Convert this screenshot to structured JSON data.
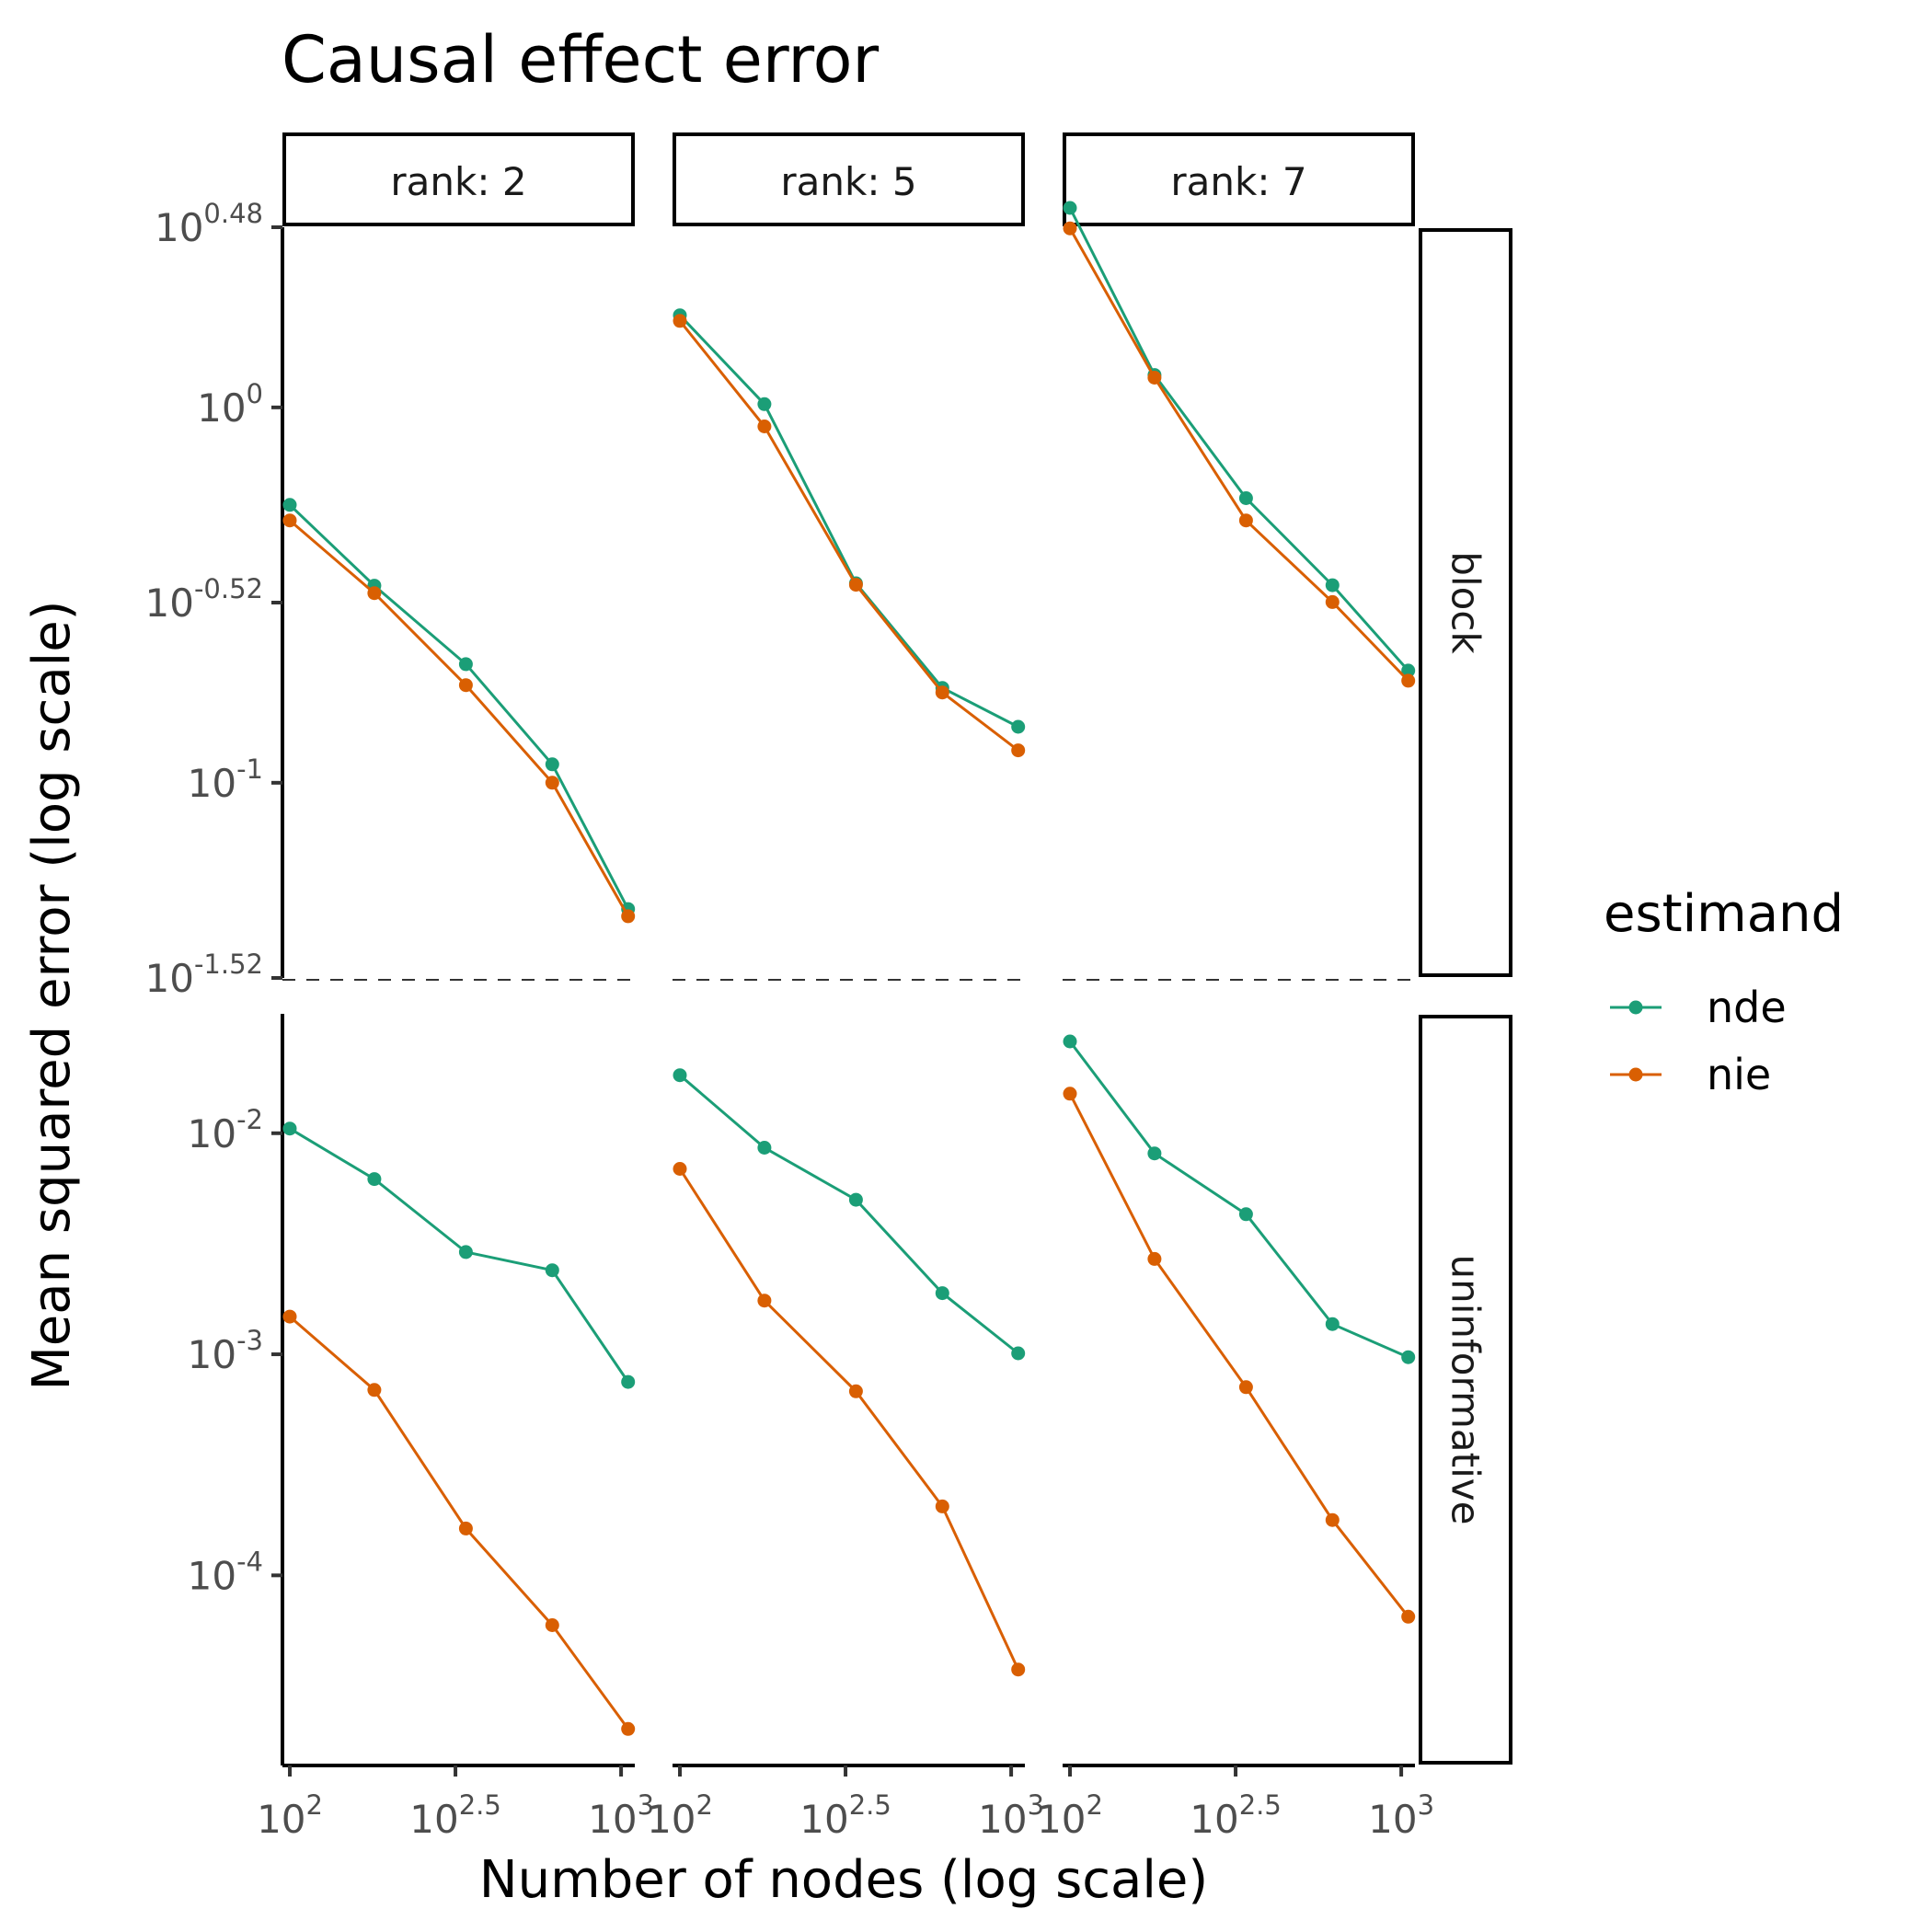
{
  "title": "Causal effect error",
  "x_axis_title": "Number of nodes (log scale)",
  "y_axis_title": "Mean squared error (log scale)",
  "legend": {
    "title": "estimand",
    "items": [
      {
        "label": "nde",
        "color": "#1B9E77"
      },
      {
        "label": "nie",
        "color": "#D95F02"
      }
    ]
  },
  "chart_data": {
    "type": "line",
    "x_scale": "log10",
    "y_scale": "log10",
    "facet_columns": [
      "rank: 2",
      "rank: 5",
      "rank: 7"
    ],
    "facet_rows": [
      "block",
      "uninformative"
    ],
    "x_ticks": [
      {
        "base": "10",
        "exp": "2",
        "value": 100
      },
      {
        "base": "10",
        "exp": "2.5",
        "value": 316.23
      },
      {
        "base": "10",
        "exp": "3",
        "value": 1000
      }
    ],
    "xlim": [
      95,
      1100
    ],
    "x": [
      100,
      180,
      340,
      620,
      1050
    ],
    "rows": [
      {
        "name": "block",
        "ylim_log10": [
          -1.52,
          0.48
        ],
        "y_ticks": [
          {
            "base": "10",
            "exp": "0.48",
            "log10": 0.48
          },
          {
            "base": "10",
            "exp": "0",
            "log10": 0
          },
          {
            "base": "10",
            "exp": "-0.52",
            "log10": -0.52
          },
          {
            "base": "10",
            "exp": "-1",
            "log10": -1
          },
          {
            "base": "10",
            "exp": "-1.52",
            "log10": -1.52
          }
        ],
        "panels": [
          {
            "label": "rank: 2",
            "series": [
              {
                "name": "nde",
                "values": [
                  0.55,
                  0.335,
                  0.207,
                  0.112,
                  0.0461
                ]
              },
              {
                "name": "nie",
                "values": [
                  0.5,
                  0.32,
                  0.182,
                  0.1,
                  0.0441
                ]
              }
            ]
          },
          {
            "label": "rank: 5",
            "series": [
              {
                "name": "nde",
                "values": [
                  1.76,
                  1.02,
                  0.34,
                  0.179,
                  0.141
                ]
              },
              {
                "name": "nie",
                "values": [
                  1.7,
                  0.89,
                  0.337,
                  0.174,
                  0.122
                ]
              }
            ]
          },
          {
            "label": "rank: 7",
            "series": [
              {
                "name": "nde",
                "values": [
                  3.4,
                  1.22,
                  0.573,
                  0.336,
                  0.199
                ]
              },
              {
                "name": "nie",
                "values": [
                  3.0,
                  1.2,
                  0.5,
                  0.303,
                  0.187
                ]
              }
            ]
          }
        ]
      },
      {
        "name": "uninformative",
        "ylim_log10": [
          -4.86,
          -1.46
        ],
        "y_ticks": [
          {
            "base": "10",
            "exp": "-2",
            "log10": -2
          },
          {
            "base": "10",
            "exp": "-3",
            "log10": -3
          },
          {
            "base": "10",
            "exp": "-4",
            "log10": -4
          }
        ],
        "panels": [
          {
            "label": "rank: 2",
            "series": [
              {
                "name": "nde",
                "values": [
                  0.0105,
                  0.0062,
                  0.0029,
                  0.0024,
                  0.00075
                ]
              },
              {
                "name": "nie",
                "values": [
                  0.00148,
                  0.00069,
                  0.000163,
                  5.95e-05,
                  2.02e-05
                ]
              }
            ]
          },
          {
            "label": "rank: 5",
            "series": [
              {
                "name": "nde",
                "values": [
                  0.0183,
                  0.0086,
                  0.005,
                  0.00189,
                  0.00101
                ]
              },
              {
                "name": "nie",
                "values": [
                  0.0069,
                  0.00175,
                  0.00068,
                  0.000205,
                  3.75e-05
                ]
              }
            ]
          },
          {
            "label": "rank: 7",
            "series": [
              {
                "name": "nde",
                "values": [
                  0.026,
                  0.0081,
                  0.0043,
                  0.00137,
                  0.00097
                ]
              },
              {
                "name": "nie",
                "values": [
                  0.0151,
                  0.0027,
                  0.00071,
                  0.000178,
                  6.5e-05
                ]
              }
            ]
          }
        ]
      }
    ]
  }
}
